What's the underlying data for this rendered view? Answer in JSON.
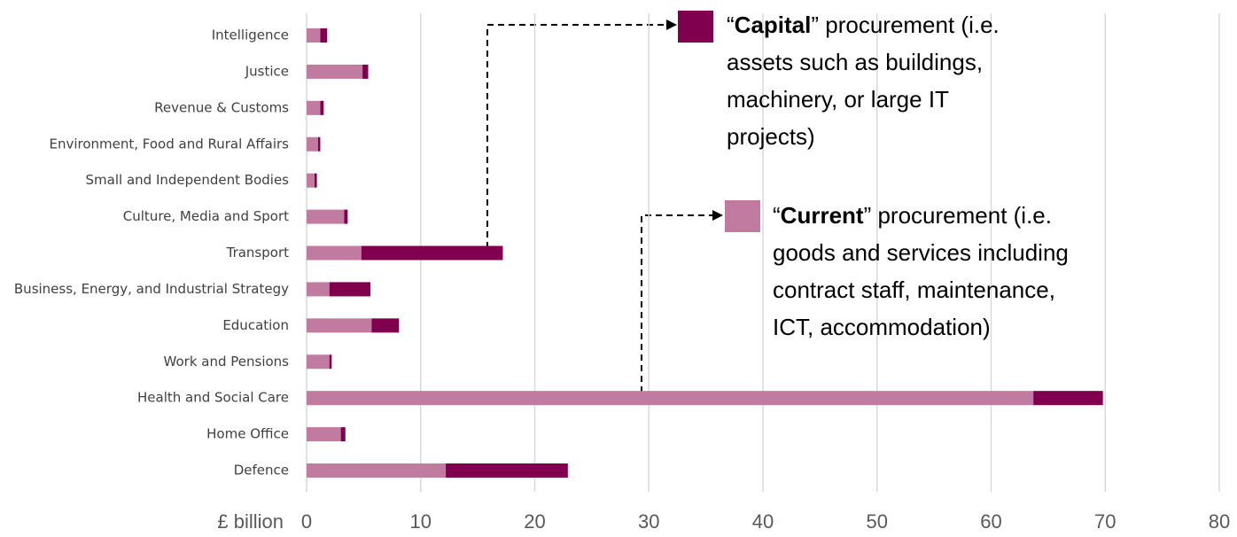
{
  "chart_data": {
    "type": "bar",
    "orientation": "horizontal",
    "stacked": true,
    "grid": true,
    "categories": [
      "Intelligence",
      "Justice",
      "Revenue & Customs",
      "Environment, Food and Rural Affairs",
      "Small and Independent Bodies",
      "Culture, Media and Sport",
      "Transport",
      "Business, Energy, and Industrial Strategy",
      "Education",
      "Work and Pensions",
      "Health and Social Care",
      "Home Office",
      "Defence"
    ],
    "series": [
      {
        "name": "Current",
        "color": "#c27ba0",
        "open_quote": "“",
        "description": [
          "” procurement (i.e.",
          "goods and services including",
          "contract staff, maintenance,",
          "ICT, accommodation)"
        ],
        "values": [
          1.2,
          4.9,
          1.2,
          1.0,
          0.7,
          3.3,
          4.8,
          2.0,
          5.7,
          2.0,
          63.7,
          3.0,
          12.2
        ]
      },
      {
        "name": "Capital",
        "color": "#80004f",
        "open_quote": "“",
        "description": [
          "” procurement (i.e.",
          "assets such as buildings,",
          "machinery, or large IT",
          "projects)"
        ],
        "values": [
          0.6,
          0.5,
          0.3,
          0.2,
          0.2,
          0.3,
          12.4,
          3.6,
          2.4,
          0.2,
          6.1,
          0.4,
          10.7
        ]
      }
    ],
    "x_label": "£ billion",
    "xlim": [
      0,
      80
    ],
    "xticks": [
      0,
      10,
      20,
      30,
      40,
      50,
      60,
      70,
      80
    ]
  }
}
